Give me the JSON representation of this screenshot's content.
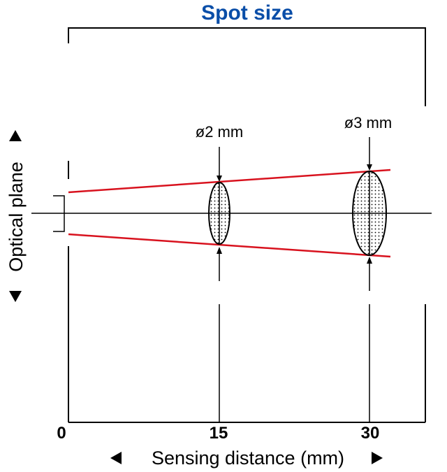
{
  "title": "Spot size",
  "colors": {
    "title": "#0a4ea8",
    "beam": "#d8121e",
    "line": "#000000"
  },
  "x_axis": {
    "label": "Sensing distance (mm)",
    "ticks": [
      "0",
      "15",
      "30"
    ]
  },
  "y_axis": {
    "label": "Optical plane"
  },
  "spots": [
    {
      "distance_mm": 15,
      "label": "ø2 mm"
    },
    {
      "distance_mm": 30,
      "label": "ø3 mm"
    }
  ]
}
